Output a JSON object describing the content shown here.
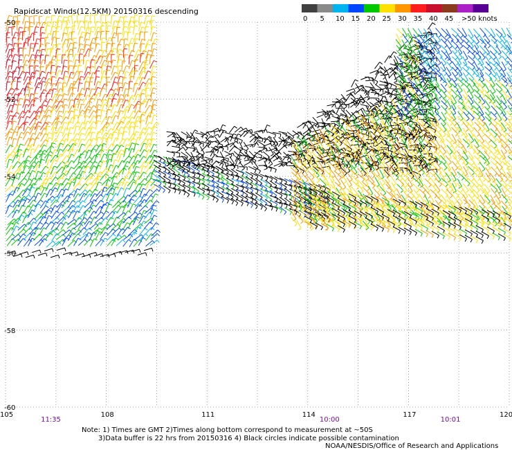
{
  "title": "Rapidscat Winds(12.5KM) 20150316 descending",
  "legend": {
    "unit_label": ">50 knots",
    "tick_labels": [
      "0",
      "5",
      "10",
      "15",
      "20",
      "25",
      "30",
      "35",
      "40",
      "45"
    ],
    "colors": [
      "#404040",
      "#8a8a8a",
      "#00b4f0",
      "#0046ff",
      "#00c800",
      "#ffe000",
      "#ff9600",
      "#ff1e1e",
      "#c8102e",
      "#8b3a1e",
      "#ab20c8",
      "#580095"
    ]
  },
  "map": {
    "lon_min": 105,
    "lon_max": 120,
    "lat_min": -60,
    "lat_max": -50,
    "lon_ticks": [
      "105",
      "108",
      "111",
      "114",
      "117",
      "120"
    ],
    "lat_ticks": [
      "-50",
      "-52",
      "-54",
      "-56",
      "-58",
      "-60"
    ],
    "grid": "dotted"
  },
  "times": [
    {
      "label": "11:35",
      "lon": 106.3
    },
    {
      "label": "10:00",
      "lon": 114.6
    },
    {
      "label": "10:01",
      "lon": 118.2
    }
  ],
  "notes": [
    "Note: 1) Times are GMT 2)Times along bottom correspond to measurement at ~50S",
    "3)Data buffer is 22 hrs from 20150316 4) Black circles indicate possible contamination",
    "NOAA/NESDIS/Office of Research and Applications"
  ],
  "chart_data": {
    "type": "wind-barb map",
    "x_range": [
      105,
      120
    ],
    "y_range": [
      -60,
      -50
    ],
    "swaths": [
      {
        "name": "western swath",
        "lon": [
          105,
          109.3
        ],
        "lat": [
          -56.4,
          -50
        ],
        "speed_knots_range": [
          15,
          35
        ]
      },
      {
        "name": "central band",
        "lon": [
          110.5,
          117.5
        ],
        "lat": [
          -55.2,
          -53.1
        ],
        "speed_knots_range": [
          5,
          25
        ]
      },
      {
        "name": "eastern swath",
        "lon": [
          114.5,
          120
        ],
        "lat": [
          -56,
          -50
        ],
        "speed_knots_range": [
          5,
          25
        ]
      }
    ]
  }
}
